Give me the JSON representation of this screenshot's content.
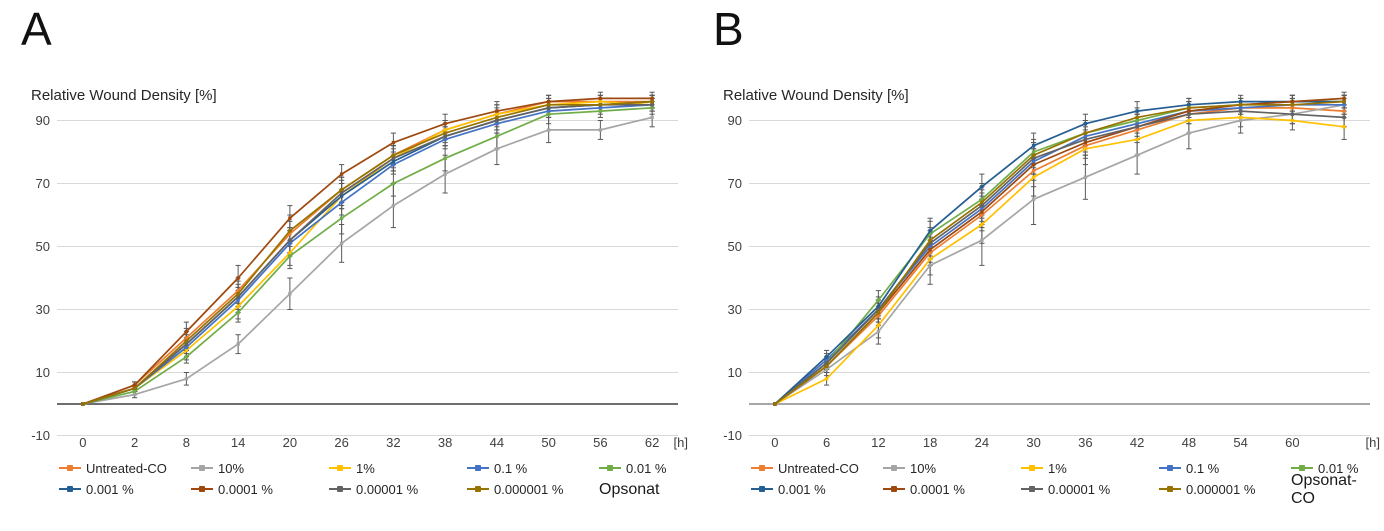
{
  "figure_kind": "two-panel line chart figure, wound healing assay",
  "colors": {
    "background": "#ffffff",
    "gridline": "#d9d9d9",
    "error_bar": "#595959",
    "tick_text": "#404040",
    "title_text": "#262626"
  },
  "chart_data": [
    {
      "type": "line",
      "label": "A",
      "title": "Relative Wound Density [%]",
      "x_axis_unit": "[h]",
      "grid": true,
      "legend_position": "bottom",
      "product_label": "Opsonat",
      "axis_line_color": "#3f3f3f",
      "ylim": [
        -10,
        100
      ],
      "y_ticks": [
        90,
        70,
        50,
        30,
        10,
        -10
      ],
      "categories": [
        0,
        2,
        8,
        14,
        20,
        26,
        32,
        38,
        44,
        50,
        56,
        62
      ],
      "x_tick_labels": [
        "0",
        "2",
        "8",
        "14",
        "20",
        "26",
        "32",
        "38",
        "44",
        "50",
        "56",
        "62"
      ],
      "series": [
        {
          "name": "Untreated-CO",
          "color": "#ED7D31",
          "values": [
            0,
            6,
            21,
            36,
            54,
            68,
            79,
            87,
            92,
            96,
            96,
            96
          ],
          "errors": [
            0,
            1,
            3,
            4,
            4,
            4,
            3,
            3,
            3,
            2,
            2,
            2
          ]
        },
        {
          "name": "10%",
          "color": "#A5A5A5",
          "values": [
            0,
            3,
            8,
            19,
            35,
            51,
            63,
            73,
            81,
            87,
            87,
            91
          ],
          "errors": [
            0,
            1,
            2,
            3,
            5,
            6,
            7,
            6,
            5,
            4,
            3,
            3
          ]
        },
        {
          "name": "1%",
          "color": "#FFC000",
          "values": [
            0,
            5,
            17,
            31,
            48,
            66,
            78,
            87,
            92,
            95,
            96,
            95
          ],
          "errors": [
            0,
            1,
            3,
            4,
            4,
            4,
            4,
            3,
            3,
            2,
            2,
            2
          ]
        },
        {
          "name": "0.1 %",
          "color": "#4472C4",
          "values": [
            0,
            5,
            18,
            33,
            51,
            64,
            76,
            84,
            89,
            93,
            94,
            95
          ],
          "errors": [
            0,
            1,
            3,
            4,
            4,
            4,
            3,
            3,
            3,
            2,
            2,
            2
          ]
        },
        {
          "name": "0.01 %",
          "color": "#70AD47",
          "values": [
            0,
            4,
            15,
            29,
            47,
            59,
            70,
            78,
            85,
            92,
            93,
            94
          ],
          "errors": [
            0,
            1,
            2,
            3,
            4,
            5,
            4,
            4,
            4,
            3,
            2,
            2
          ]
        },
        {
          "name": "0.001 %",
          "color": "#255E91",
          "values": [
            0,
            5,
            19,
            34,
            52,
            66,
            77,
            85,
            90,
            94,
            95,
            96
          ],
          "errors": [
            0,
            1,
            3,
            4,
            4,
            4,
            3,
            3,
            3,
            2,
            2,
            2
          ]
        },
        {
          "name": "0.0001 %",
          "color": "#9E480E",
          "values": [
            0,
            6,
            23,
            40,
            59,
            73,
            83,
            89,
            93,
            96,
            97,
            97
          ],
          "errors": [
            0,
            1,
            3,
            4,
            4,
            3,
            3,
            3,
            3,
            2,
            2,
            2
          ]
        },
        {
          "name": "0.00001 %",
          "color": "#636363",
          "values": [
            0,
            5,
            19,
            34,
            52,
            67,
            78,
            85,
            90,
            94,
            95,
            95
          ],
          "errors": [
            0,
            1,
            2,
            3,
            4,
            4,
            3,
            3,
            3,
            2,
            2,
            2
          ]
        },
        {
          "name": "0.000001 %",
          "color": "#997300",
          "values": [
            0,
            5,
            20,
            35,
            55,
            68,
            79,
            86,
            91,
            95,
            95,
            96
          ],
          "errors": [
            0,
            1,
            3,
            4,
            5,
            4,
            3,
            3,
            3,
            2,
            2,
            2
          ]
        }
      ]
    },
    {
      "type": "line",
      "label": "B",
      "title": "Relative Wound Density [%]",
      "x_axis_unit": "[h]",
      "grid": true,
      "legend_position": "bottom",
      "product_label": "Opsonat-CO",
      "axis_line_color": "#898989",
      "ylim": [
        -10,
        100
      ],
      "y_ticks": [
        90,
        70,
        50,
        30,
        10,
        -10
      ],
      "categories": [
        0,
        6,
        12,
        18,
        24,
        30,
        36,
        42,
        48,
        54,
        60,
        66
      ],
      "x_tick_labels": [
        "0",
        "6",
        "12",
        "18",
        "24",
        "30",
        "36",
        "42",
        "48",
        "54",
        "60",
        ""
      ],
      "series": [
        {
          "name": "Untreated-CO",
          "color": "#ED7D31",
          "values": [
            0,
            12,
            28,
            48,
            60,
            74,
            82,
            87,
            92,
            94,
            94,
            93
          ],
          "errors": [
            0,
            2,
            3,
            4,
            5,
            5,
            4,
            4,
            3,
            2,
            2,
            2
          ]
        },
        {
          "name": "10%",
          "color": "#A5A5A5",
          "values": [
            0,
            11,
            23,
            44,
            52,
            65,
            72,
            79,
            86,
            90,
            92,
            95
          ],
          "errors": [
            0,
            2,
            4,
            6,
            8,
            8,
            7,
            6,
            5,
            4,
            3,
            3
          ]
        },
        {
          "name": "1%",
          "color": "#FFC000",
          "values": [
            0,
            8,
            25,
            46,
            57,
            72,
            81,
            84,
            90,
            91,
            90,
            88
          ],
          "errors": [
            0,
            2,
            4,
            5,
            6,
            6,
            5,
            5,
            4,
            3,
            3,
            4
          ]
        },
        {
          "name": "0.1 %",
          "color": "#4472C4",
          "values": [
            0,
            14,
            30,
            50,
            62,
            77,
            85,
            89,
            93,
            94,
            95,
            95
          ],
          "errors": [
            0,
            2,
            3,
            4,
            5,
            4,
            4,
            3,
            3,
            2,
            2,
            2
          ]
        },
        {
          "name": "0.01 %",
          "color": "#70AD47",
          "values": [
            0,
            13,
            33,
            54,
            65,
            80,
            86,
            90,
            94,
            95,
            96,
            96
          ],
          "errors": [
            0,
            2,
            3,
            4,
            5,
            4,
            4,
            3,
            2,
            2,
            2,
            2
          ]
        },
        {
          "name": "0.001 %",
          "color": "#255E91",
          "values": [
            0,
            15,
            31,
            55,
            69,
            82,
            89,
            93,
            95,
            96,
            96,
            96
          ],
          "errors": [
            0,
            2,
            3,
            4,
            4,
            4,
            3,
            3,
            2,
            2,
            2,
            2
          ]
        },
        {
          "name": "0.0001 %",
          "color": "#9E480E",
          "values": [
            0,
            12,
            29,
            49,
            61,
            76,
            83,
            88,
            93,
            95,
            96,
            97
          ],
          "errors": [
            0,
            2,
            3,
            4,
            5,
            5,
            4,
            4,
            3,
            2,
            2,
            2
          ]
        },
        {
          "name": "0.00001 %",
          "color": "#636363",
          "values": [
            0,
            13,
            30,
            51,
            63,
            78,
            84,
            88,
            92,
            93,
            92,
            91
          ],
          "errors": [
            0,
            2,
            3,
            4,
            5,
            5,
            4,
            4,
            3,
            3,
            3,
            3
          ]
        },
        {
          "name": "0.000001 %",
          "color": "#997300",
          "values": [
            0,
            12,
            29,
            52,
            64,
            79,
            86,
            91,
            94,
            95,
            95,
            96
          ],
          "errors": [
            0,
            2,
            3,
            4,
            5,
            4,
            4,
            3,
            3,
            2,
            2,
            2
          ]
        }
      ]
    }
  ]
}
